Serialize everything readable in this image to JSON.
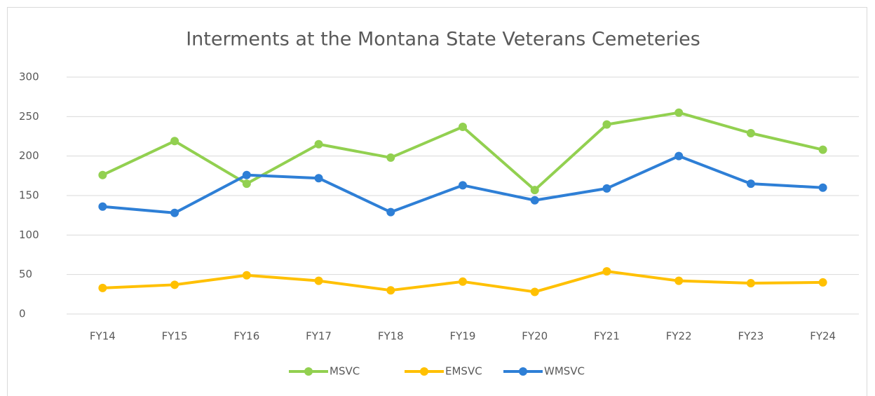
{
  "chart_data": {
    "type": "line",
    "title": "Interments at the Montana State Veterans Cemeteries",
    "categories": [
      "FY14",
      "FY15",
      "FY16",
      "FY17",
      "FY18",
      "FY19",
      "FY20",
      "FY21",
      "FY22",
      "FY23",
      "FY24"
    ],
    "series": [
      {
        "name": "MSVC",
        "color": "#92d050",
        "values": [
          176,
          219,
          165,
          215,
          198,
          237,
          157,
          240,
          255,
          229,
          208
        ]
      },
      {
        "name": "EMSVC",
        "color": "#ffc000",
        "values": [
          33,
          37,
          49,
          42,
          30,
          41,
          28,
          54,
          42,
          39,
          40
        ]
      },
      {
        "name": "WMSVC",
        "color": "#2e7fd6",
        "values": [
          136,
          128,
          176,
          172,
          129,
          163,
          144,
          159,
          200,
          165,
          160
        ]
      }
    ],
    "ylim": [
      0,
      300
    ],
    "yticks": [
      0,
      50,
      100,
      150,
      200,
      250,
      300
    ],
    "grid": true,
    "legend": "bottom"
  }
}
